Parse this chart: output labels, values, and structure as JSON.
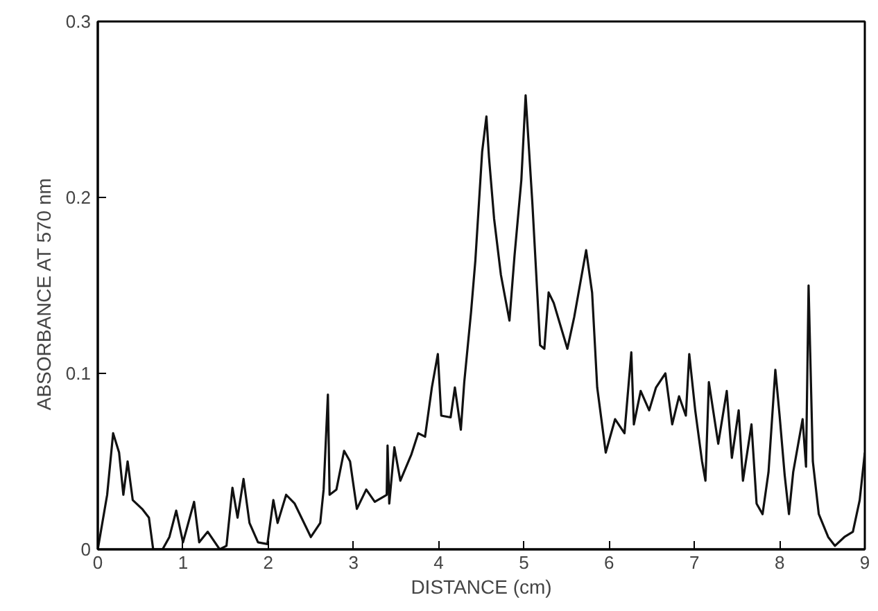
{
  "chart_data": {
    "type": "line",
    "xlabel": "DISTANCE (cm)",
    "ylabel": "ABSORBANCE  AT  570  nm",
    "xlim": [
      0,
      9
    ],
    "ylim": [
      0,
      0.3
    ],
    "xticks": [
      0,
      1,
      2,
      3,
      4,
      5,
      6,
      7,
      8,
      9
    ],
    "yticks": [
      0,
      {
        "value": 0.1,
        "label": "0.1"
      },
      {
        "value": 0.2,
        "label": "0.2"
      },
      {
        "value": 0.3,
        "label": "0.3"
      }
    ],
    "grid": false,
    "marker": "none",
    "line_style": "solid",
    "series": [
      {
        "color": "#111111",
        "x": [
          0,
          0.11,
          0.18,
          0.25,
          0.3,
          0.35,
          0.41,
          0.52,
          0.6,
          0.65,
          0.76,
          0.84,
          0.92,
          1.0,
          1.13,
          1.19,
          1.29,
          1.43,
          1.51,
          1.58,
          1.64,
          1.71,
          1.78,
          1.88,
          1.99,
          2.06,
          2.11,
          2.21,
          2.31,
          2.5,
          2.61,
          2.65,
          2.7,
          2.72,
          2.8,
          2.89,
          2.96,
          3.04,
          3.15,
          3.25,
          3.39,
          3.4,
          3.42,
          3.48,
          3.55,
          3.68,
          3.76,
          3.84,
          3.92,
          3.99,
          4.03,
          4.14,
          4.19,
          4.26,
          4.3,
          4.38,
          4.43,
          4.51,
          4.56,
          4.59,
          4.65,
          4.73,
          4.83,
          4.89,
          4.97,
          5.02,
          5.1,
          5.19,
          5.24,
          5.29,
          5.35,
          5.43,
          5.51,
          5.59,
          5.66,
          5.73,
          5.8,
          5.86,
          5.96,
          6.07,
          6.18,
          6.26,
          6.29,
          6.37,
          6.47,
          6.55,
          6.66,
          6.74,
          6.82,
          6.9,
          6.94,
          7.01,
          7.09,
          7.13,
          7.17,
          7.28,
          7.38,
          7.44,
          7.52,
          7.57,
          7.67,
          7.73,
          7.8,
          7.87,
          7.95,
          8.0,
          8.06,
          8.11,
          8.16,
          8.27,
          8.31,
          8.34,
          8.39,
          8.46,
          8.57,
          8.65,
          8.76,
          8.86,
          8.94,
          9.0
        ],
        "values": [
          0,
          0.031,
          0.066,
          0.055,
          0.031,
          0.05,
          0.028,
          0.023,
          0.018,
          0.0,
          0.0,
          0.007,
          0.022,
          0.004,
          0.027,
          0.004,
          0.01,
          0.0,
          0.002,
          0.035,
          0.018,
          0.04,
          0.015,
          0.004,
          0.003,
          0.028,
          0.015,
          0.031,
          0.026,
          0.007,
          0.015,
          0.034,
          0.088,
          0.031,
          0.034,
          0.056,
          0.05,
          0.023,
          0.034,
          0.027,
          0.031,
          0.059,
          0.026,
          0.058,
          0.039,
          0.054,
          0.066,
          0.064,
          0.092,
          0.111,
          0.076,
          0.075,
          0.092,
          0.068,
          0.095,
          0.135,
          0.164,
          0.226,
          0.246,
          0.223,
          0.188,
          0.156,
          0.13,
          0.167,
          0.21,
          0.258,
          0.196,
          0.116,
          0.114,
          0.146,
          0.14,
          0.127,
          0.114,
          0.132,
          0.151,
          0.17,
          0.146,
          0.092,
          0.055,
          0.074,
          0.066,
          0.112,
          0.071,
          0.09,
          0.079,
          0.092,
          0.1,
          0.071,
          0.087,
          0.076,
          0.111,
          0.079,
          0.05,
          0.039,
          0.095,
          0.06,
          0.09,
          0.052,
          0.079,
          0.039,
          0.071,
          0.026,
          0.02,
          0.044,
          0.102,
          0.076,
          0.042,
          0.02,
          0.044,
          0.074,
          0.047,
          0.15,
          0.05,
          0.02,
          0.007,
          0.002,
          0.007,
          0.01,
          0.028,
          0.055
        ]
      }
    ]
  }
}
